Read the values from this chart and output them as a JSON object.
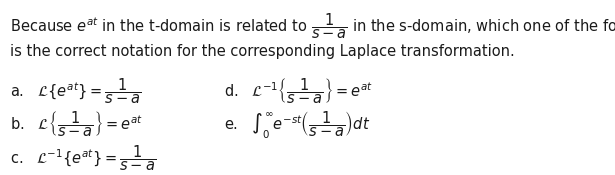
{
  "background_color": "#ffffff",
  "text_color": "#1a1a1a",
  "intro_line1": "Because $e^{at}$ in the t-domain is related to $\\dfrac{1}{s-a}$ in the s-domain, which one of the following",
  "intro_line2": "is the correct notation for the corresponding Laplace transformation.",
  "option_a": "a.   $\\mathcal{L}\\{e^{at}\\} = \\dfrac{1}{s-a}$",
  "option_b": "b.   $\\mathcal{L}\\left\\{\\dfrac{1}{s-a}\\right\\} = e^{at}$",
  "option_c": "c.   $\\mathcal{L}^{-1}\\{e^{at}\\} = \\dfrac{1}{s-a}$",
  "option_d": "d.   $\\mathcal{L}^{-1}\\left\\{\\dfrac{1}{s-a}\\right\\} = e^{at}$",
  "option_e": "e.   $\\int_0^{\\infty} e^{-st} \\left(\\dfrac{1}{s-a}\\right) dt$",
  "figsize": [
    6.15,
    1.75
  ],
  "dpi": 100
}
